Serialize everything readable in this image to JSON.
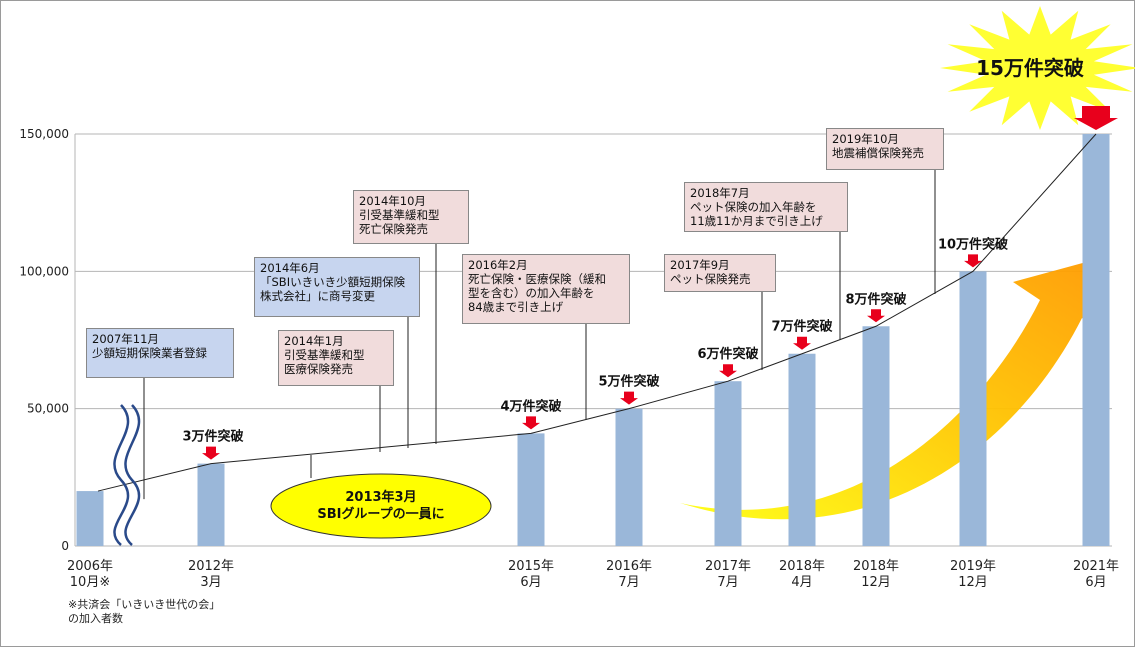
{
  "chart_data": {
    "type": "bar",
    "ylim": [
      0,
      150000
    ],
    "yticks": [
      "0",
      "50,000",
      "100,000",
      "150,000"
    ],
    "categories": [
      "2006年\n10月※",
      "2012年\n3月",
      "2015年\n6月",
      "2016年\n7月",
      "2017年\n7月",
      "2018年\n4月",
      "2018年\n12月",
      "2019年\n12月",
      "2021年\n6月"
    ],
    "values": [
      20000,
      30000,
      41000,
      50000,
      60000,
      70000,
      80000,
      100000,
      150000
    ],
    "milestone_labels": [
      "",
      "3万件突破",
      "4万件突破",
      "5万件突破",
      "",
      "7万件突破",
      "8万件突破",
      "10万件突破",
      ""
    ],
    "milestone_labels_left": [
      "",
      "",
      "",
      "",
      "6万件突破",
      "",
      "",
      "",
      ""
    ],
    "bar_color": "#9ab7d9",
    "grid": true
  },
  "footnote": "※共済会「いきいき世代の会」\nの加入者数",
  "burst": {
    "label": "15万件突破",
    "color": "#ffff33"
  },
  "ellipse": {
    "label": "2013年3月\nSBIグループの一員に",
    "color": "#ffff00"
  },
  "callouts": [
    {
      "text": "2007年11月\n少額短期保険業者登録",
      "style": "blue"
    },
    {
      "text": "2014年6月\n「SBIいきいき少額短期保険\n株式会社」に商号変更",
      "style": "blue"
    },
    {
      "text": "2014年1月\n引受基準緩和型\n医療保険発売",
      "style": "pink"
    },
    {
      "text": "2014年10月\n引受基準緩和型\n死亡保険発売",
      "style": "pink"
    },
    {
      "text": "2016年2月\n死亡保険・医療保険（緩和\n型を含む）の加入年齢を\n84歳まで引き上げ",
      "style": "pink"
    },
    {
      "text": "2017年9月\nペット保険発売",
      "style": "pink"
    },
    {
      "text": "2018年7月\nペット保険の加入年齢を\n11歳11か月まで引き上げ",
      "style": "pink"
    },
    {
      "text": "2019年10月\n地震補償保険発売",
      "style": "pink"
    }
  ],
  "arrow_color": "#e8001c"
}
